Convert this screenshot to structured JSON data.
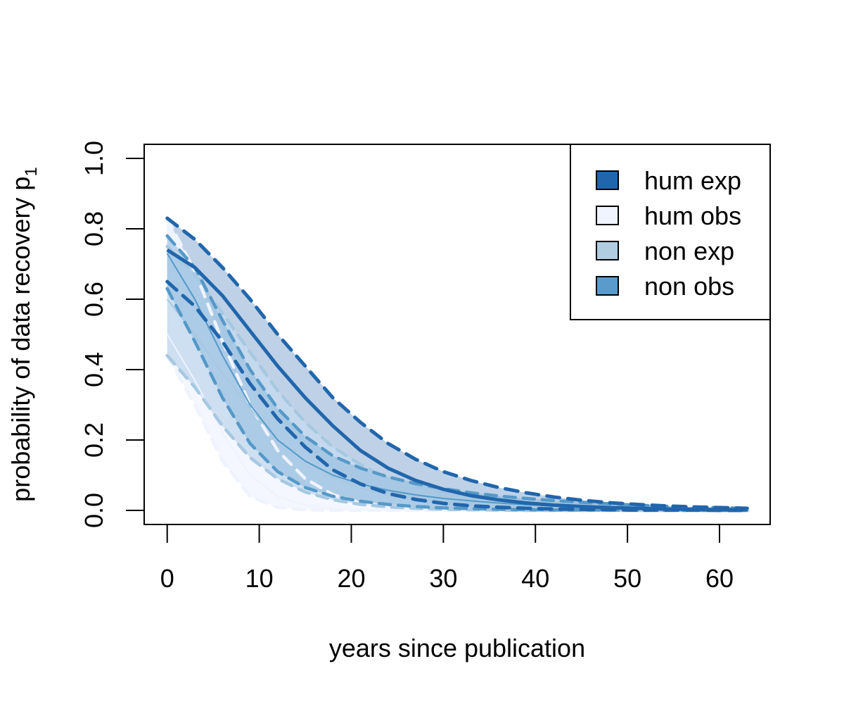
{
  "chart_data": {
    "type": "line",
    "title": "",
    "xlabel": "years since publication",
    "ylabel": "probability of data recovery p",
    "ylabel_subscript": "1",
    "xlim": [
      -2.5,
      65.5
    ],
    "ylim": [
      -0.04,
      1.04
    ],
    "xticks": [
      0,
      10,
      20,
      30,
      40,
      50,
      60
    ],
    "yticks": [
      0.0,
      0.2,
      0.4,
      0.6,
      0.8,
      1.0
    ],
    "xtick_labels": [
      "0",
      "10",
      "20",
      "30",
      "40",
      "50",
      "60"
    ],
    "ytick_labels": [
      "0.0",
      "0.2",
      "0.4",
      "0.6",
      "0.8",
      "1.0"
    ],
    "x": [
      0,
      3,
      6,
      9,
      12,
      15,
      18,
      21,
      24,
      27,
      30,
      33,
      36,
      39,
      42,
      45,
      48,
      51,
      54,
      57,
      60,
      63
    ],
    "legend_position": "top-right",
    "series": [
      {
        "name": "hum exp",
        "color": "#2166ac",
        "fill": "#b8cde4",
        "fill_opacity": 0.92,
        "line_width": 5,
        "mean": [
          0.74,
          0.69,
          0.61,
          0.51,
          0.41,
          0.32,
          0.24,
          0.17,
          0.12,
          0.085,
          0.06,
          0.042,
          0.03,
          0.021,
          0.015,
          0.011,
          0.008,
          0.006,
          0.004,
          0.003,
          0.002,
          0.002
        ],
        "lower": [
          0.65,
          0.58,
          0.48,
          0.36,
          0.26,
          0.18,
          0.115,
          0.075,
          0.048,
          0.031,
          0.02,
          0.013,
          0.009,
          0.006,
          0.004,
          0.003,
          0.002,
          0.001,
          0.001,
          0.001,
          0.0,
          0.0
        ],
        "upper": [
          0.83,
          0.77,
          0.69,
          0.6,
          0.5,
          0.41,
          0.32,
          0.25,
          0.19,
          0.145,
          0.11,
          0.085,
          0.065,
          0.05,
          0.038,
          0.029,
          0.022,
          0.017,
          0.013,
          0.01,
          0.008,
          0.006
        ]
      },
      {
        "name": "hum obs",
        "color": "#eef3ff",
        "fill": "#f3f6ff",
        "fill_opacity": 0.9,
        "line_width": 2,
        "mean": [
          0.5,
          0.37,
          0.22,
          0.1,
          0.04,
          0.015,
          0.005,
          0.002,
          0.001,
          0.0,
          0.0,
          0.0,
          0.0,
          0.0,
          0.0,
          0.0,
          0.0,
          0.0,
          0.0,
          0.0,
          0.0,
          0.0
        ],
        "lower": [
          0.44,
          0.3,
          0.14,
          0.04,
          0.008,
          0.002,
          0.0,
          0.0,
          0.0,
          0.0,
          0.0,
          0.0,
          0.0,
          0.0,
          0.0,
          0.0,
          0.0,
          0.0,
          0.0,
          0.0,
          0.0,
          0.0
        ],
        "upper": [
          0.83,
          0.68,
          0.48,
          0.3,
          0.17,
          0.09,
          0.045,
          0.022,
          0.011,
          0.005,
          0.003,
          0.002,
          0.001,
          0.0,
          0.0,
          0.0,
          0.0,
          0.0,
          0.0,
          0.0,
          0.0,
          0.0
        ]
      },
      {
        "name": "non exp",
        "color": "#a6c8e1",
        "fill": "#c6dbef",
        "fill_opacity": 0.85,
        "line_width": 2,
        "mean": [
          0.6,
          0.5,
          0.39,
          0.29,
          0.2,
          0.14,
          0.095,
          0.063,
          0.042,
          0.028,
          0.018,
          0.012,
          0.008,
          0.005,
          0.003,
          0.002,
          0.001,
          0.001,
          0.001,
          0.0,
          0.0,
          0.0
        ],
        "lower": [
          0.44,
          0.35,
          0.24,
          0.15,
          0.09,
          0.052,
          0.03,
          0.017,
          0.01,
          0.006,
          0.003,
          0.002,
          0.001,
          0.0,
          0.0,
          0.0,
          0.0,
          0.0,
          0.0,
          0.0,
          0.0,
          0.0
        ],
        "upper": [
          0.75,
          0.67,
          0.56,
          0.45,
          0.34,
          0.25,
          0.18,
          0.13,
          0.09,
          0.064,
          0.045,
          0.032,
          0.022,
          0.016,
          0.011,
          0.008,
          0.005,
          0.004,
          0.003,
          0.002,
          0.001,
          0.001
        ]
      },
      {
        "name": "non obs",
        "color": "#5599c8",
        "fill": "#8fb9dc",
        "fill_opacity": 0.55,
        "line_width": 2,
        "mean": [
          0.73,
          0.6,
          0.44,
          0.3,
          0.2,
          0.14,
          0.1,
          0.075,
          0.057,
          0.044,
          0.034,
          0.027,
          0.021,
          0.016,
          0.013,
          0.01,
          0.008,
          0.006,
          0.005,
          0.004,
          0.003,
          0.002
        ],
        "lower": [
          0.63,
          0.48,
          0.32,
          0.19,
          0.11,
          0.065,
          0.04,
          0.026,
          0.017,
          0.011,
          0.007,
          0.005,
          0.003,
          0.002,
          0.001,
          0.001,
          0.001,
          0.0,
          0.0,
          0.0,
          0.0,
          0.0
        ],
        "upper": [
          0.78,
          0.69,
          0.54,
          0.4,
          0.29,
          0.21,
          0.155,
          0.12,
          0.095,
          0.076,
          0.062,
          0.05,
          0.041,
          0.034,
          0.028,
          0.023,
          0.019,
          0.015,
          0.012,
          0.01,
          0.008,
          0.006
        ]
      }
    ]
  }
}
